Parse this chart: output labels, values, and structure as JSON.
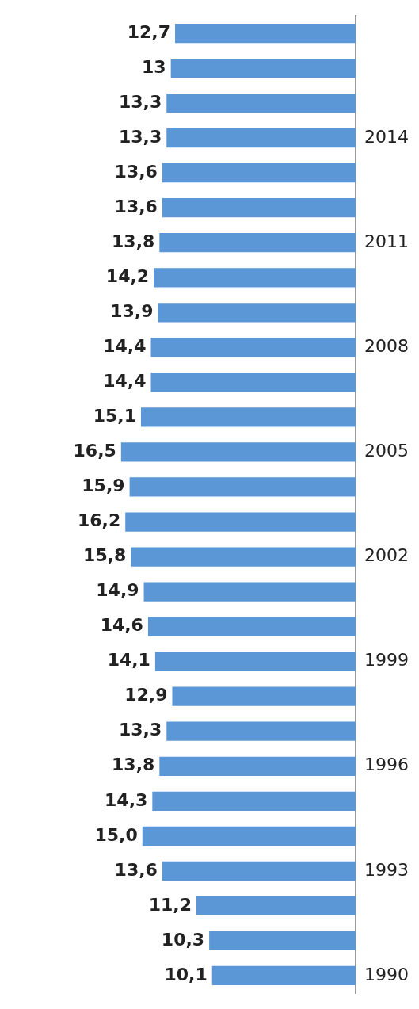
{
  "chart_data": {
    "type": "bar",
    "orientation": "horizontal",
    "categories": [
      null,
      null,
      null,
      "2014",
      null,
      null,
      "2011",
      null,
      null,
      "2008",
      null,
      null,
      "2005",
      null,
      null,
      "2002",
      null,
      null,
      "1999",
      null,
      null,
      "1996",
      null,
      null,
      "1993",
      null,
      null,
      "1990"
    ],
    "values": [
      12.7,
      13,
      13.3,
      13.3,
      13.6,
      13.6,
      13.8,
      14.2,
      13.9,
      14.4,
      14.4,
      15.1,
      16.5,
      15.9,
      16.2,
      15.8,
      14.9,
      14.6,
      14.1,
      12.9,
      13.3,
      13.8,
      14.3,
      15.0,
      13.6,
      11.2,
      10.3,
      10.1
    ],
    "value_labels": [
      "12,7",
      "13",
      "13,3",
      "13,3",
      "13,6",
      "13,6",
      "13,8",
      "14,2",
      "13,9",
      "14,4",
      "14,4",
      "15,1",
      "16,5",
      "15,9",
      "16,2",
      "15,8",
      "14,9",
      "14,6",
      "14,1",
      "12,9",
      "13,3",
      "13,8",
      "14,3",
      "15,0",
      "13,6",
      "11,2",
      "10,3",
      "10,1"
    ],
    "color": "#5b96d6",
    "grid": false,
    "legend": false
  }
}
